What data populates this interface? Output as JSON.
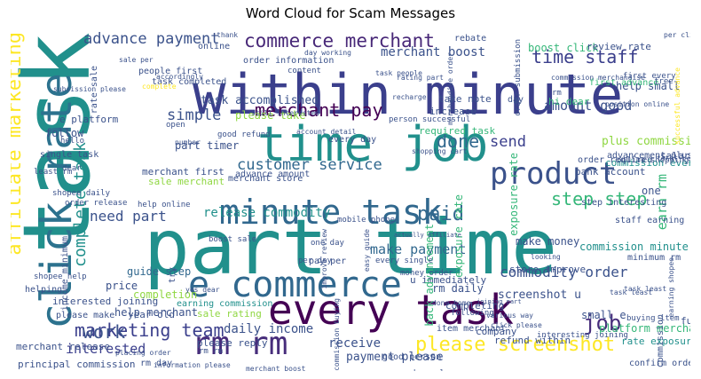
{
  "title": "Word Cloud for Scam Messages",
  "palette": {
    "dark_purple": "#440154",
    "indigo": "#3b3f8c",
    "blue": "#31688e",
    "teal": "#21908c",
    "green": "#35b779",
    "lime": "#90d743",
    "yellow": "#fde725"
  },
  "words": [
    {
      "text": "task",
      "color": "#21908c"
    },
    {
      "text": "part time",
      "color": "#21908c"
    },
    {
      "text": "within minute",
      "color": "#3b3f8c"
    },
    {
      "text": "time job",
      "color": "#21908c"
    },
    {
      "text": "click rate",
      "color": "#2c728e"
    },
    {
      "text": "every task",
      "color": "#440154"
    },
    {
      "text": "e commerce",
      "color": "#31688e"
    },
    {
      "text": "minute task",
      "color": "#31688e"
    },
    {
      "text": "product",
      "color": "#3b528b"
    },
    {
      "text": "affiliate marketing",
      "color": "#fde725"
    },
    {
      "text": "rm rm",
      "color": "#472d7b"
    },
    {
      "text": "commerce merchant",
      "color": "#482878"
    },
    {
      "text": "please screenshot",
      "color": "#fde725"
    },
    {
      "text": "step step",
      "color": "#35b779"
    },
    {
      "text": "complete task",
      "color": "#21908c"
    },
    {
      "text": "marketing team",
      "color": "#3b3f8c"
    },
    {
      "text": "customer service",
      "color": "#31688e"
    },
    {
      "text": "merchant pay",
      "color": "#440154"
    },
    {
      "text": "simple",
      "color": "#3b528b"
    },
    {
      "text": "done",
      "color": "#31688e"
    },
    {
      "text": "need part",
      "color": "#3b528b"
    },
    {
      "text": "paid",
      "color": "#31688e"
    },
    {
      "text": "time staff",
      "color": "#3b3f8c"
    },
    {
      "text": "advance payment",
      "color": "#3b528b"
    },
    {
      "text": "merchant boost",
      "color": "#3b528b"
    },
    {
      "text": "job",
      "color": "#472d7b"
    },
    {
      "text": "work",
      "color": "#3b528b"
    },
    {
      "text": "send",
      "color": "#3b3f8c"
    },
    {
      "text": "amount good",
      "color": "#3b528b"
    },
    {
      "text": "earn rm",
      "color": "#35b779"
    },
    {
      "text": "commodity order",
      "color": "#3b528b"
    },
    {
      "text": "make payment",
      "color": "#31688e"
    },
    {
      "text": "release commodity",
      "color": "#21908c"
    },
    {
      "text": "task accomplished",
      "color": "#3b528b"
    },
    {
      "text": "part timer",
      "color": "#3b528b"
    },
    {
      "text": "daily income",
      "color": "#3b528b"
    },
    {
      "text": "guide step",
      "color": "#31688e"
    },
    {
      "text": "interested",
      "color": "#3b3f8c"
    },
    {
      "text": "screenshot u",
      "color": "#3b528b"
    },
    {
      "text": "payment please",
      "color": "#3b528b"
    },
    {
      "text": "accomplished merchant",
      "color": "#21908c"
    },
    {
      "text": "refund within",
      "color": "#3b528b"
    },
    {
      "text": "please take",
      "color": "#90d743"
    },
    {
      "text": "plus commission",
      "color": "#90d743"
    },
    {
      "text": "commission every",
      "color": "#21908c"
    },
    {
      "text": "exposure rate",
      "color": "#35b779"
    },
    {
      "text": "commission minute",
      "color": "#21908c"
    },
    {
      "text": "make money",
      "color": "#3b528b"
    },
    {
      "text": "store improve",
      "color": "#3b528b"
    },
    {
      "text": "u immediately",
      "color": "#3b528b"
    },
    {
      "text": "rm daily",
      "color": "#3b528b"
    },
    {
      "text": "small e",
      "color": "#3b528b"
    },
    {
      "text": "platform merchant",
      "color": "#35b779"
    },
    {
      "text": "rate exposure",
      "color": "#21908c"
    },
    {
      "text": "help merchant",
      "color": "#3b528b"
    },
    {
      "text": "year old",
      "color": "#3b528b"
    },
    {
      "text": "sale rating",
      "color": "#90d743"
    },
    {
      "text": "please reply",
      "color": "#3b528b"
    },
    {
      "text": "receive",
      "color": "#3b528b"
    },
    {
      "text": "completion",
      "color": "#90d743"
    },
    {
      "text": "price",
      "color": "#3b528b"
    },
    {
      "text": "earning commission",
      "color": "#21908c"
    },
    {
      "text": "income minimum",
      "color": "#3b528b"
    },
    {
      "text": "e platform",
      "color": "#3b528b"
    },
    {
      "text": "follow",
      "color": "#3b528b"
    },
    {
      "text": "one",
      "color": "#3b528b"
    },
    {
      "text": "boost click",
      "color": "#35b779"
    },
    {
      "text": "review rate",
      "color": "#3b528b"
    },
    {
      "text": "take note",
      "color": "#3b528b"
    },
    {
      "text": "increase",
      "color": "#3b528b"
    },
    {
      "text": "required task",
      "color": "#35b779"
    },
    {
      "text": "hi dear",
      "color": "#35b779"
    },
    {
      "text": "salary",
      "color": "#3b528b"
    },
    {
      "text": "help small",
      "color": "#3b528b"
    },
    {
      "text": "bank account",
      "color": "#3b528b"
    },
    {
      "text": "order required",
      "color": "#3b528b"
    },
    {
      "text": "step interesting",
      "color": "#3b528b"
    },
    {
      "text": "staff earning",
      "color": "#3b528b"
    },
    {
      "text": "minimum rm",
      "color": "#3b528b"
    },
    {
      "text": "merchant first",
      "color": "#3b528b"
    },
    {
      "text": "sale merchant",
      "color": "#90d743"
    },
    {
      "text": "merchant store",
      "color": "#3b528b"
    },
    {
      "text": "advance amount",
      "color": "#3b528b"
    },
    {
      "text": "every day",
      "color": "#3b528b"
    },
    {
      "text": "order information",
      "color": "#3b528b"
    },
    {
      "text": "task completed",
      "color": "#3b528b"
    },
    {
      "text": "people first",
      "color": "#3b528b"
    },
    {
      "text": "merchant release",
      "color": "#3b528b"
    },
    {
      "text": "principal commission",
      "color": "#3b528b"
    },
    {
      "text": "interested joining",
      "color": "#3b528b"
    },
    {
      "text": "please make",
      "color": "#3b528b"
    },
    {
      "text": "help online",
      "color": "#3b528b"
    },
    {
      "text": "order release",
      "color": "#3b528b"
    },
    {
      "text": "mobile phone",
      "color": "#3b528b"
    },
    {
      "text": "person successful",
      "color": "#3b528b"
    },
    {
      "text": "first advance",
      "color": "#35b779"
    },
    {
      "text": "advancement plus",
      "color": "#3b528b"
    },
    {
      "text": "online shopping",
      "color": "#3b528b"
    },
    {
      "text": "confirm order",
      "color": "#3b528b"
    },
    {
      "text": "buying item",
      "color": "#3b528b"
    },
    {
      "text": "rebate",
      "color": "#3b528b"
    },
    {
      "text": "online",
      "color": "#3b528b"
    },
    {
      "text": "completing",
      "color": "#3b528b"
    },
    {
      "text": "pay per",
      "color": "#3b528b"
    },
    {
      "text": "per day",
      "color": "#3b528b"
    },
    {
      "text": "one day",
      "color": "#3b528b"
    },
    {
      "text": "item merchant",
      "color": "#3b528b"
    },
    {
      "text": "good person",
      "color": "#3b528b"
    },
    {
      "text": "company",
      "color": "#3b528b"
    },
    {
      "text": "dear please",
      "color": "#3b528b"
    },
    {
      "text": "rm day",
      "color": "#3b528b"
    },
    {
      "text": "fun",
      "color": "#3b528b"
    },
    {
      "text": "earn commission",
      "color": "#3b528b"
    },
    {
      "text": "interesting joining",
      "color": "#3b528b"
    },
    {
      "text": "task least",
      "color": "#3b528b"
    },
    {
      "text": "good refund",
      "color": "#3b528b"
    },
    {
      "text": "account detail",
      "color": "#3b528b"
    },
    {
      "text": "still interested",
      "color": "#3b528b"
    },
    {
      "text": "back advancement",
      "color": "#35b779"
    },
    {
      "text": "exposure rate",
      "color": "#35b779"
    },
    {
      "text": "order submission",
      "color": "#3b528b"
    },
    {
      "text": "commission merchandise",
      "color": "#3b528b"
    },
    {
      "text": "position online",
      "color": "#3b528b"
    },
    {
      "text": "rating part",
      "color": "#3b528b"
    },
    {
      "text": "task people",
      "color": "#3b528b"
    },
    {
      "text": "content",
      "color": "#3b528b"
    },
    {
      "text": "day working",
      "color": "#3b528b"
    },
    {
      "text": "single task",
      "color": "#3b528b"
    },
    {
      "text": "shopee help",
      "color": "#3b528b"
    },
    {
      "text": "helping",
      "color": "#3b528b"
    },
    {
      "text": "least rm",
      "color": "#3b528b"
    },
    {
      "text": "hello",
      "color": "#3b528b"
    },
    {
      "text": "boost sale",
      "color": "#3b528b"
    },
    {
      "text": "open",
      "color": "#3b528b"
    },
    {
      "text": "number",
      "color": "#3b528b"
    },
    {
      "text": "yes dear",
      "color": "#3b528b"
    },
    {
      "text": "done home",
      "color": "#3b528b"
    },
    {
      "text": "following",
      "color": "#3b528b"
    },
    {
      "text": "various way",
      "color": "#3b528b"
    },
    {
      "text": "looking",
      "color": "#3b528b"
    },
    {
      "text": "every single",
      "color": "#3b528b"
    },
    {
      "text": "money order",
      "color": "#3b528b"
    },
    {
      "text": "improve review",
      "color": "#3b528b"
    },
    {
      "text": "easy guide",
      "color": "#3b528b"
    },
    {
      "text": "actually affiliate",
      "color": "#3b528b"
    },
    {
      "text": "shopping cart",
      "color": "#3b528b"
    },
    {
      "text": "successful advance",
      "color": "#fde725"
    },
    {
      "text": "total rebate",
      "color": "#3b528b"
    },
    {
      "text": "shopee daily",
      "color": "#3b528b"
    },
    {
      "text": "try",
      "color": "#3b528b"
    },
    {
      "text": "rate sale",
      "color": "#3b528b"
    },
    {
      "text": "thank",
      "color": "#3b528b"
    },
    {
      "text": "per click",
      "color": "#3b528b"
    },
    {
      "text": "first every",
      "color": "#3b528b"
    },
    {
      "text": "free",
      "color": "#3b528b"
    },
    {
      "text": "subsission please",
      "color": "#3b528b"
    },
    {
      "text": "complete",
      "color": "#fde725"
    },
    {
      "text": "sale per",
      "color": "#3b528b"
    },
    {
      "text": "accordingly",
      "color": "#3b528b"
    },
    {
      "text": "dear",
      "color": "#3b528b"
    },
    {
      "text": "rm rm",
      "color": "#3b528b"
    },
    {
      "text": "placing order",
      "color": "#3b528b"
    },
    {
      "text": "information please",
      "color": "#3b528b"
    },
    {
      "text": "merchant boost",
      "color": "#3b528b"
    },
    {
      "text": "commission buying",
      "color": "#3b528b"
    },
    {
      "text": "click please",
      "color": "#3b528b"
    },
    {
      "text": "merchandise order",
      "color": "#3b528b"
    },
    {
      "text": "task least",
      "color": "#3b528b"
    },
    {
      "text": "earning shopee",
      "color": "#3b528b"
    },
    {
      "text": "recharge",
      "color": "#3b528b"
    },
    {
      "text": "joining part",
      "color": "#3b528b"
    },
    {
      "text": "day",
      "color": "#3b528b"
    },
    {
      "text": "rm",
      "color": "#3b528b"
    }
  ]
}
